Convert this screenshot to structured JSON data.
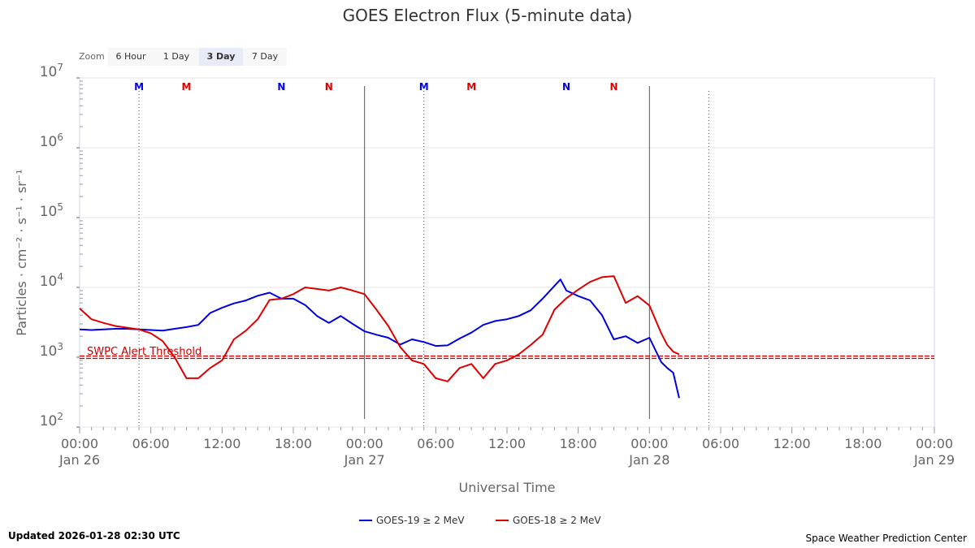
{
  "title": "GOES Electron Flux (5-minute data)",
  "zoom": {
    "label": "Zoom",
    "buttons": [
      "6 Hour",
      "1 Day",
      "3 Day",
      "7 Day"
    ],
    "active": "3 Day"
  },
  "footer": {
    "updated": "Updated 2026-01-28 02:30 UTC",
    "credit": "Space Weather Prediction Center"
  },
  "colors": {
    "goes19": "#0000dd",
    "goes18": "#dd0000",
    "threshold": "#cc0000",
    "grid": "#e6e6e6"
  },
  "chart_data": {
    "type": "line",
    "title": "GOES Electron Flux (5-minute data)",
    "xlabel": "Universal Time",
    "ylabel": "Particles · cm⁻² · s⁻¹ · sr⁻¹",
    "yscale": "log",
    "ylim": [
      100,
      10000000
    ],
    "y_ticks": [
      {
        "base": "10",
        "exp": "2"
      },
      {
        "base": "10",
        "exp": "3"
      },
      {
        "base": "10",
        "exp": "4"
      },
      {
        "base": "10",
        "exp": "5"
      },
      {
        "base": "10",
        "exp": "6"
      },
      {
        "base": "10",
        "exp": "7"
      }
    ],
    "x_range_hours": [
      0,
      72
    ],
    "x_ticks": [
      {
        "time": "00:00",
        "date": "Jan 26"
      },
      {
        "time": "06:00",
        "date": ""
      },
      {
        "time": "12:00",
        "date": ""
      },
      {
        "time": "18:00",
        "date": ""
      },
      {
        "time": "00:00",
        "date": "Jan 27"
      },
      {
        "time": "06:00",
        "date": ""
      },
      {
        "time": "12:00",
        "date": ""
      },
      {
        "time": "18:00",
        "date": ""
      },
      {
        "time": "00:00",
        "date": "Jan 28"
      },
      {
        "time": "06:00",
        "date": ""
      },
      {
        "time": "12:00",
        "date": ""
      },
      {
        "time": "18:00",
        "date": ""
      },
      {
        "time": "00:00",
        "date": "Jan 29"
      }
    ],
    "threshold": {
      "label": "SWPC Alert Threshold",
      "value": 1000
    },
    "day_boundaries_hours": [
      24,
      48
    ],
    "dotted_lines_hours": [
      5,
      29,
      53
    ],
    "markers": [
      {
        "label": "M",
        "hour": 5,
        "series": "goes19"
      },
      {
        "label": "M",
        "hour": 9,
        "series": "goes18"
      },
      {
        "label": "N",
        "hour": 17,
        "series": "goes19"
      },
      {
        "label": "N",
        "hour": 21,
        "series": "goes18"
      },
      {
        "label": "M",
        "hour": 29,
        "series": "goes19"
      },
      {
        "label": "M",
        "hour": 33,
        "series": "goes18"
      },
      {
        "label": "N",
        "hour": 41,
        "series": "goes19"
      },
      {
        "label": "N",
        "hour": 45,
        "series": "goes18"
      }
    ],
    "series": [
      {
        "name": "GOES-19 ≥ 2 MeV",
        "key": "goes19",
        "x_hours": [
          0,
          1,
          2,
          3,
          4,
          5,
          6,
          7,
          8,
          9,
          10,
          11,
          12,
          13,
          14,
          15,
          16,
          17,
          18,
          19,
          20,
          21,
          22,
          23,
          24,
          25,
          26,
          27,
          28,
          29,
          30,
          31,
          32,
          33,
          34,
          35,
          36,
          37,
          38,
          39,
          40,
          40.5,
          41,
          42,
          43,
          44,
          45,
          46,
          47,
          48,
          49,
          49.5,
          50,
          50.5
        ],
        "values": [
          2500,
          2450,
          2500,
          2550,
          2550,
          2500,
          2450,
          2400,
          2550,
          2700,
          2900,
          4300,
          5100,
          5900,
          6500,
          7600,
          8400,
          6900,
          6900,
          5600,
          3900,
          3100,
          3900,
          3000,
          2350,
          2100,
          1900,
          1520,
          1800,
          1650,
          1450,
          1480,
          1850,
          2250,
          2900,
          3300,
          3500,
          3900,
          4700,
          6900,
          10500,
          13000,
          9000,
          7500,
          6500,
          4000,
          1800,
          2000,
          1600,
          1900,
          850,
          700,
          600,
          260
        ]
      },
      {
        "name": "GOES-18 ≥ 2 MeV",
        "key": "goes18",
        "x_hours": [
          0,
          1,
          2,
          3,
          4,
          5,
          6,
          7,
          8,
          9,
          10,
          11,
          12,
          13,
          14,
          15,
          16,
          17,
          18,
          19,
          20,
          21,
          22,
          23,
          24,
          25,
          26,
          27,
          28,
          29,
          30,
          31,
          32,
          33,
          34,
          35,
          36,
          37,
          38,
          39,
          40,
          41,
          42,
          43,
          44,
          45,
          46,
          47,
          48,
          49,
          49.5,
          50,
          50.5,
          51,
          52,
          53,
          54,
          55,
          56,
          57,
          58,
          59,
          60,
          61,
          62,
          63,
          64,
          65,
          66,
          67,
          68,
          69,
          70,
          71,
          72
        ],
        "values": [
          5000,
          3500,
          3100,
          2800,
          2650,
          2500,
          2200,
          1700,
          1000,
          500,
          500,
          700,
          900,
          1800,
          2400,
          3500,
          6600,
          6900,
          8000,
          10000,
          9500,
          9000,
          10000,
          9000,
          8000,
          4800,
          2800,
          1400,
          900,
          800,
          500,
          450,
          700,
          800,
          500,
          800,
          900,
          1100,
          1500,
          2100,
          4800,
          7000,
          9300,
          12000,
          14000,
          14500,
          6000,
          7500,
          5500,
          2200,
          1500,
          1200,
          1100,
          null,
          null,
          null,
          null,
          null,
          null,
          null,
          null,
          null,
          null,
          null,
          null,
          null,
          null,
          null,
          null,
          null,
          null,
          null,
          null,
          null,
          null
        ]
      }
    ]
  }
}
